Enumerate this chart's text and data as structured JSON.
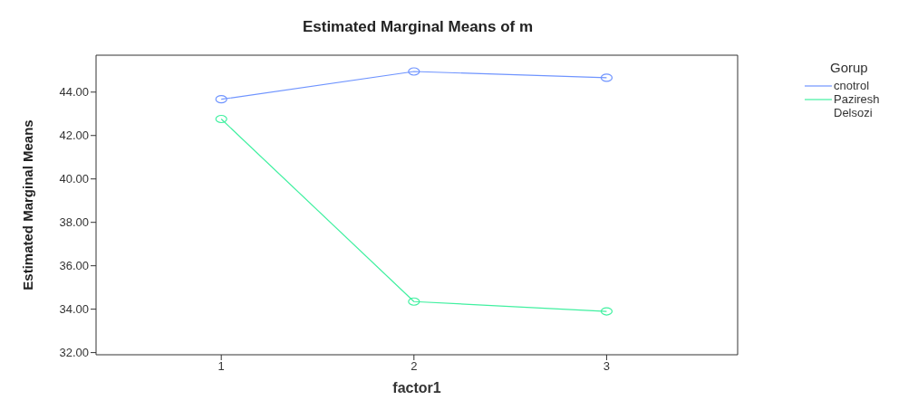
{
  "chart_data": {
    "type": "line",
    "title": "Estimated Marginal Means of m",
    "xlabel": "factor1",
    "ylabel": "Estimated Marginal Means",
    "legend_title": "Gorup",
    "x": [
      1,
      2,
      3
    ],
    "series": [
      {
        "name": "cnotrol",
        "color": "#6f94ff",
        "values": [
          43.67,
          44.95,
          44.66
        ]
      },
      {
        "name": "Paziresh Delsozi",
        "color": "#40f0a0",
        "values": [
          42.76,
          34.35,
          33.9
        ]
      }
    ],
    "xlim": [
      0.35,
      3.68
    ],
    "xticks": [
      1,
      2,
      3
    ],
    "ylim": [
      31.9,
      45.7
    ],
    "yticks": [
      {
        "value": 32,
        "label": "32.00"
      },
      {
        "value": 34,
        "label": "34.00"
      },
      {
        "value": 36,
        "label": "36.00"
      },
      {
        "value": 38,
        "label": "38.00"
      },
      {
        "value": 40,
        "label": "40.00"
      },
      {
        "value": 42,
        "label": "42.00"
      },
      {
        "value": 44,
        "label": "44.00"
      }
    ],
    "grid": false,
    "legend": "top right",
    "marker": "circle",
    "line_style": "solid"
  }
}
